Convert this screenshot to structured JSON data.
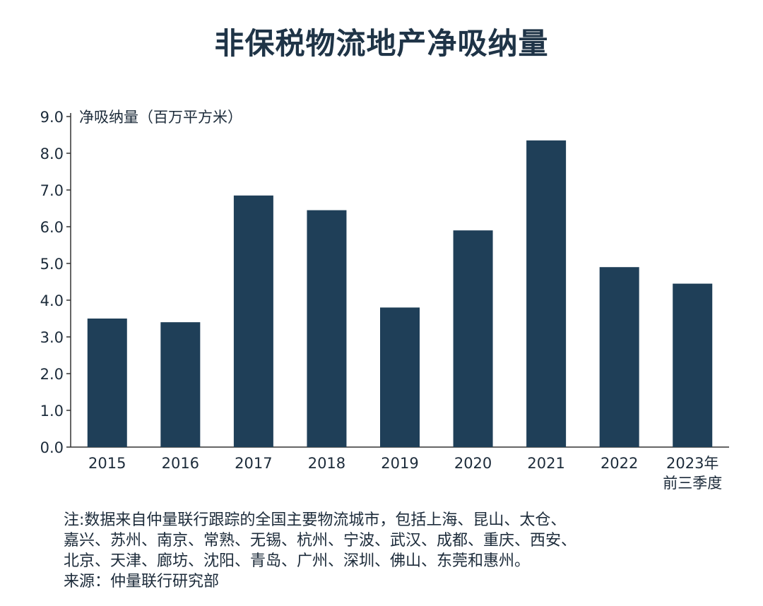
{
  "chart_data": {
    "type": "bar",
    "title": "非保税物流地产净吸纳量",
    "ylabel": "净吸纳量（百万平方米）",
    "xlabel": "",
    "categories": [
      "2015",
      "2016",
      "2017",
      "2018",
      "2019",
      "2020",
      "2021",
      "2022",
      "2023年|前三季度"
    ],
    "values": [
      3.5,
      3.4,
      6.85,
      6.45,
      3.8,
      5.9,
      8.35,
      4.9,
      4.45
    ],
    "ylim": [
      0,
      9
    ],
    "yticks": [
      "0.0",
      "1.0",
      "2.0",
      "3.0",
      "4.0",
      "5.0",
      "6.0",
      "7.0",
      "8.0",
      "9.0"
    ],
    "grid": false,
    "bar_color": "#1f3f58"
  },
  "notes": {
    "line1": "注:数据来自仲量联行跟踪的全国主要物流城市，包括上海、昆山、太仓、",
    "line2": "嘉兴、苏州、南京、常熟、无锡、杭州、宁波、武汉、成都、重庆、西安、",
    "line3": "北京、天津、廊坊、沈阳、青岛、广州、深圳、佛山、东莞和惠州。",
    "source": "来源：仲量联行研究部"
  }
}
